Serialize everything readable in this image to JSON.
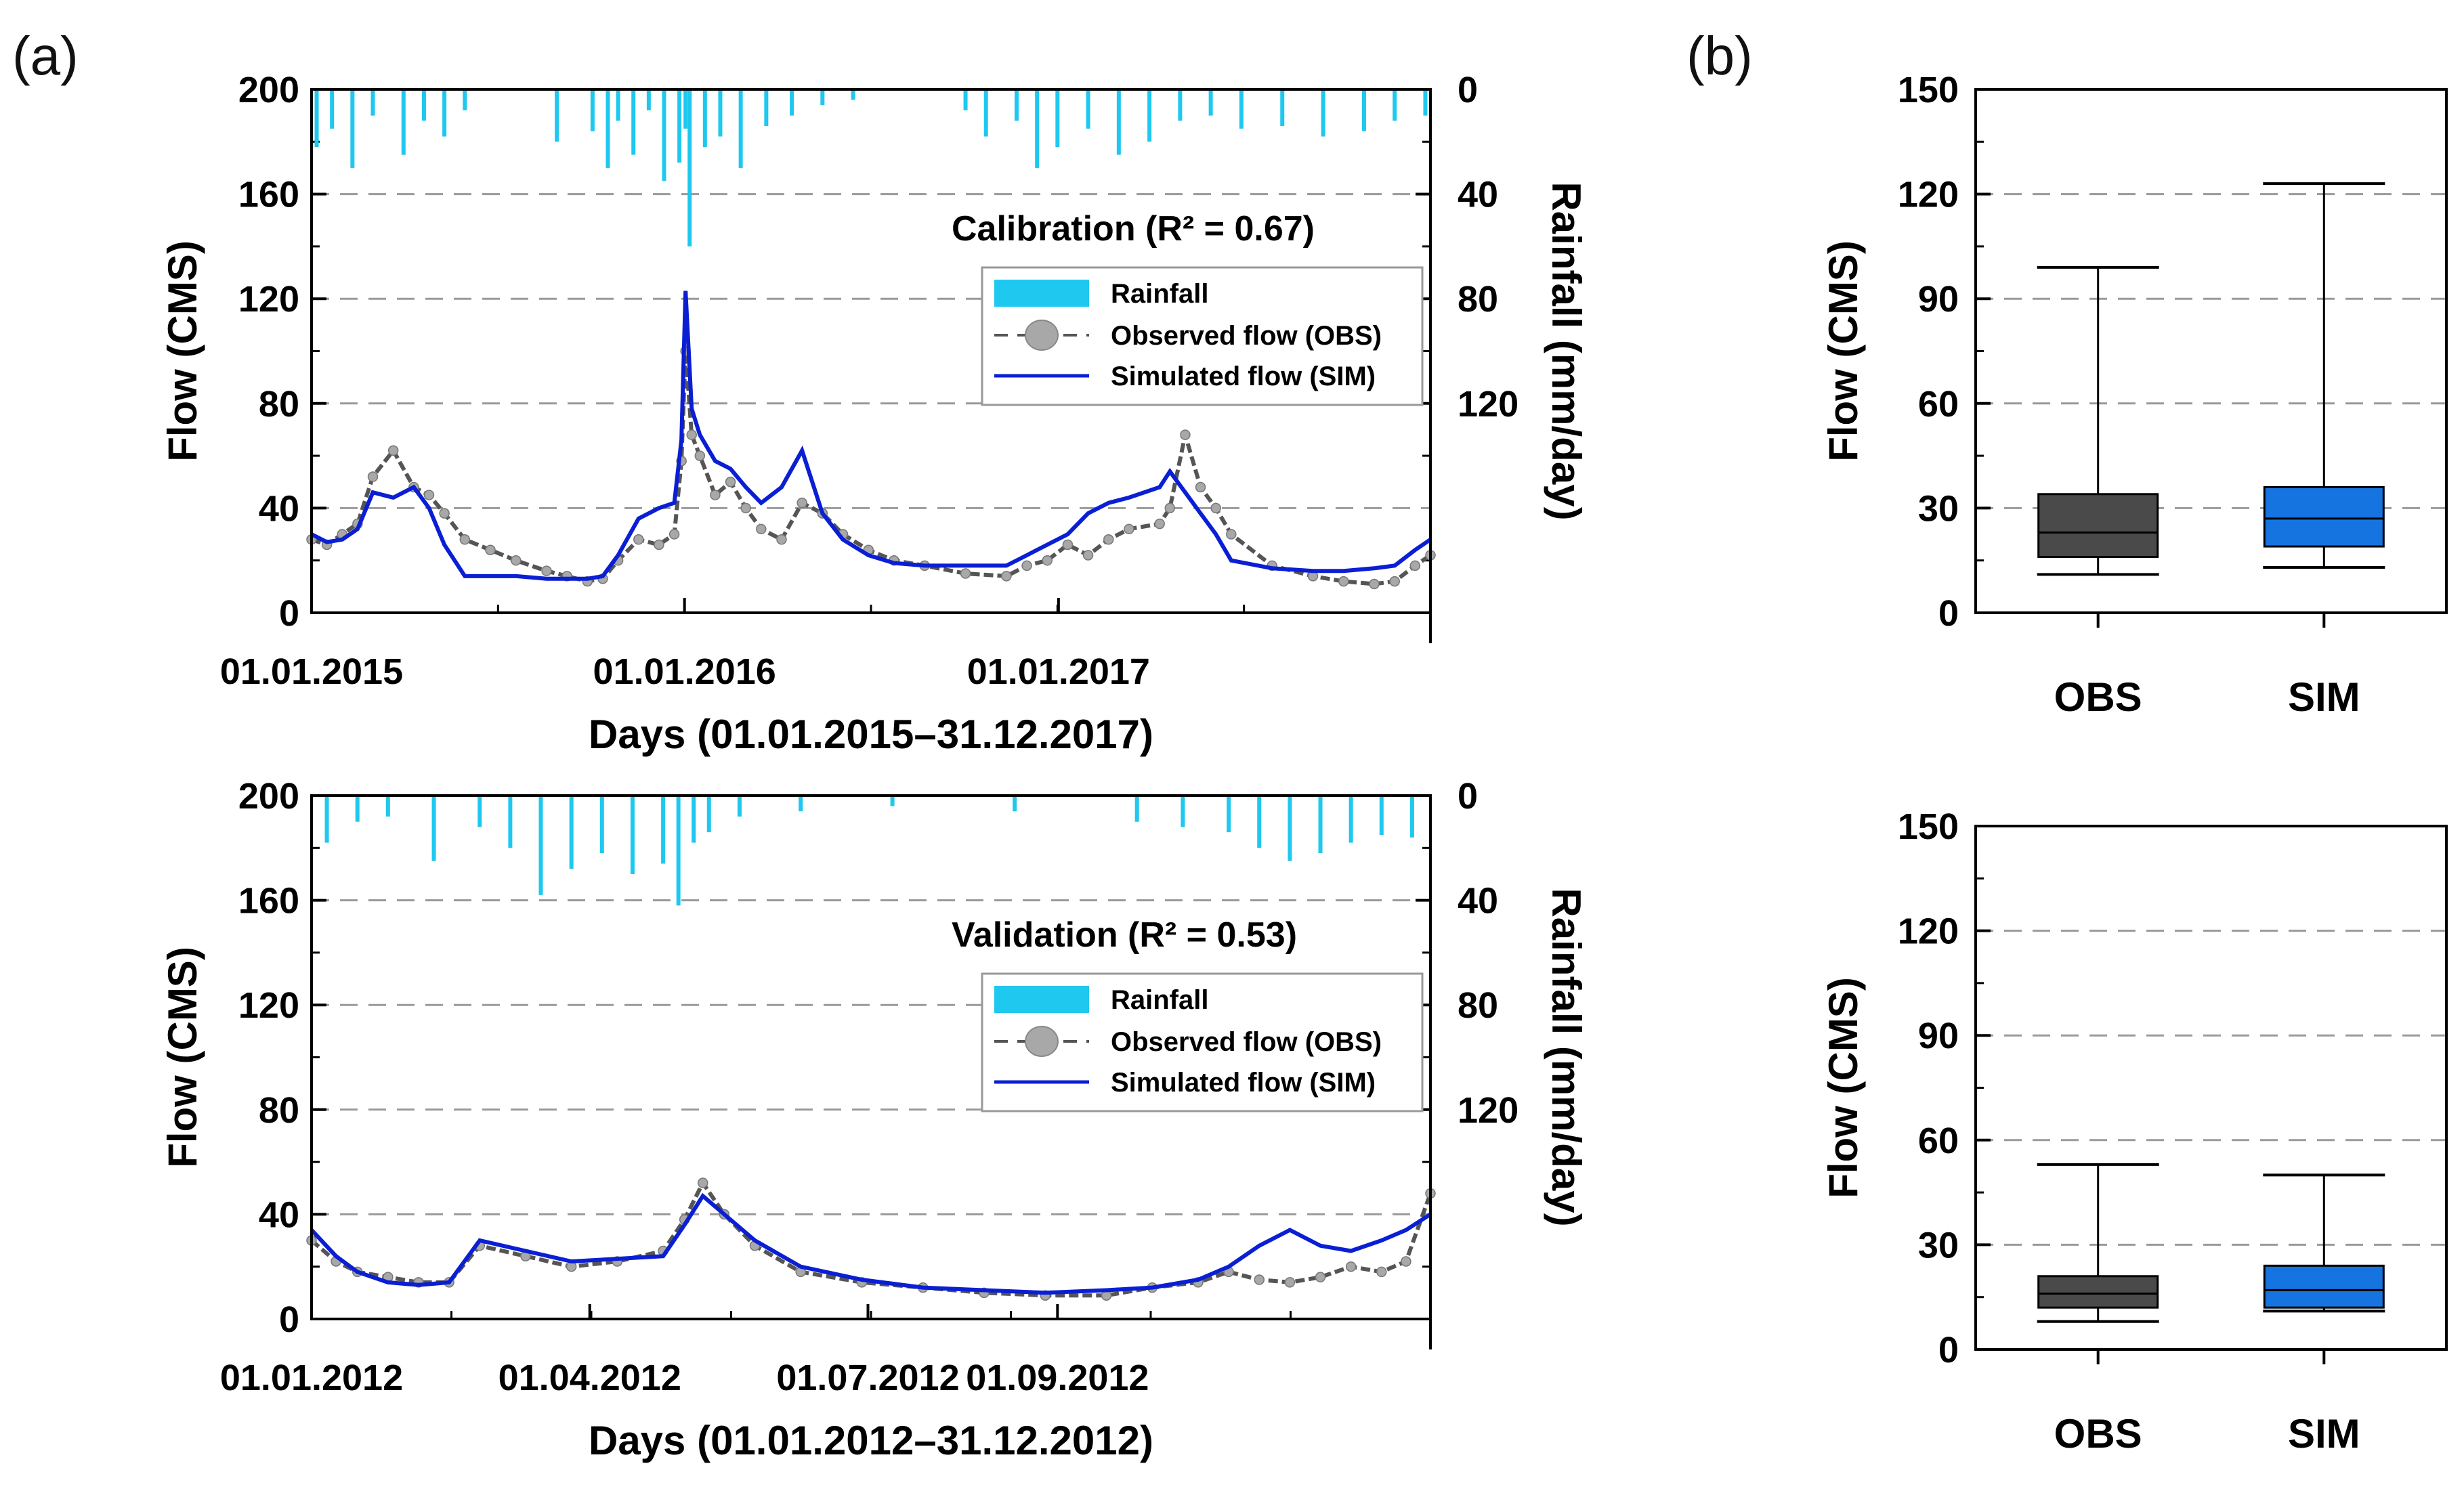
{
  "panel_labels": {
    "a": "(a)",
    "b": "(b)"
  },
  "colors": {
    "rainfall": "#1ec8ef",
    "obs_marker": "#a8a8a8",
    "obs_line": "#555555",
    "sim": "#0a1fd4",
    "box_obs": "#4a4a4a",
    "box_sim": "#1574e0",
    "grid": "#9a9a9a"
  },
  "chart_data": [
    {
      "type": "line",
      "id": "calibration",
      "annotation": "Calibration (R² = 0.67)",
      "xlabel": "Days (01.01.2015–31.12.2017)",
      "ylabel": "Flow (CMS)",
      "ylabel_right": "Rainfall (mm/day)",
      "xlim": [
        0,
        1095
      ],
      "ylim": [
        0,
        200
      ],
      "ylim_right": [
        0,
        200
      ],
      "ylim_right_inverted": true,
      "yticks": [
        "0",
        "40",
        "80",
        "120",
        "160",
        "200"
      ],
      "yticks_right": [
        "0",
        "40",
        "80",
        "120"
      ],
      "xtick_labels": [
        {
          "pos": 0,
          "label": "01.01.2015"
        },
        {
          "pos": 365,
          "label": "01.01.2016"
        },
        {
          "pos": 731,
          "label": "01.01.2017"
        }
      ],
      "legend": [
        "Rainfall",
        "Observed flow (OBS)",
        "Simulated flow (SIM)"
      ],
      "legend_position": "upper-right",
      "series": [
        {
          "name": "Observed flow (OBS)",
          "axis": "left",
          "x": [
            0,
            15,
            30,
            45,
            60,
            80,
            100,
            115,
            130,
            150,
            175,
            200,
            230,
            250,
            270,
            285,
            300,
            320,
            340,
            355,
            362,
            366,
            372,
            380,
            395,
            410,
            425,
            440,
            460,
            480,
            500,
            520,
            545,
            570,
            600,
            640,
            680,
            700,
            720,
            740,
            760,
            780,
            800,
            830,
            840,
            855,
            870,
            885,
            900,
            940,
            980,
            1010,
            1040,
            1060,
            1080,
            1095
          ],
          "y": [
            28,
            26,
            30,
            34,
            52,
            62,
            48,
            45,
            38,
            28,
            24,
            20,
            16,
            14,
            12,
            13,
            20,
            28,
            26,
            30,
            58,
            100,
            68,
            60,
            45,
            50,
            40,
            32,
            28,
            42,
            38,
            30,
            24,
            20,
            18,
            15,
            14,
            18,
            20,
            26,
            22,
            28,
            32,
            34,
            40,
            68,
            48,
            40,
            30,
            18,
            14,
            12,
            11,
            12,
            18,
            22
          ]
        },
        {
          "name": "Simulated flow (SIM)",
          "axis": "left",
          "x": [
            0,
            15,
            30,
            45,
            60,
            80,
            100,
            115,
            130,
            150,
            175,
            200,
            230,
            250,
            270,
            285,
            300,
            320,
            340,
            355,
            362,
            366,
            372,
            380,
            395,
            410,
            425,
            440,
            460,
            480,
            500,
            520,
            545,
            570,
            600,
            640,
            680,
            700,
            720,
            740,
            760,
            780,
            800,
            830,
            840,
            855,
            870,
            885,
            900,
            940,
            980,
            1010,
            1040,
            1060,
            1080,
            1095
          ],
          "y": [
            30,
            27,
            28,
            32,
            46,
            44,
            48,
            40,
            26,
            14,
            14,
            14,
            13,
            13,
            13,
            14,
            22,
            36,
            40,
            42,
            66,
            123,
            78,
            68,
            58,
            55,
            48,
            42,
            48,
            62,
            38,
            28,
            22,
            19,
            18,
            18,
            18,
            22,
            26,
            30,
            38,
            42,
            44,
            48,
            54,
            46,
            38,
            30,
            20,
            17,
            16,
            16,
            17,
            18,
            24,
            28
          ]
        },
        {
          "name": "Rainfall",
          "axis": "right",
          "type": "bar",
          "x": [
            5,
            20,
            40,
            60,
            90,
            110,
            130,
            150,
            240,
            275,
            290,
            300,
            315,
            330,
            345,
            360,
            366,
            370,
            385,
            400,
            420,
            445,
            470,
            500,
            530,
            640,
            660,
            690,
            710,
            730,
            760,
            790,
            820,
            850,
            880,
            910,
            950,
            990,
            1030,
            1060,
            1090
          ],
          "values": [
            22,
            15,
            30,
            10,
            25,
            12,
            18,
            8,
            20,
            16,
            30,
            12,
            25,
            8,
            35,
            28,
            15,
            60,
            22,
            18,
            30,
            14,
            10,
            6,
            4,
            8,
            18,
            12,
            30,
            22,
            15,
            25,
            20,
            12,
            10,
            15,
            14,
            18,
            16,
            12,
            10
          ]
        }
      ]
    },
    {
      "type": "line",
      "id": "validation",
      "annotation": "Validation (R² = 0.53)",
      "xlabel": "Days (01.01.2012–31.12.2012)",
      "ylabel": "Flow (CMS)",
      "ylabel_right": "Rainfall (mm/day)",
      "xlim": [
        0,
        366
      ],
      "ylim": [
        0,
        200
      ],
      "ylim_right": [
        0,
        200
      ],
      "ylim_right_inverted": true,
      "yticks": [
        "0",
        "40",
        "80",
        "120",
        "160",
        "200"
      ],
      "yticks_right": [
        "0",
        "40",
        "80",
        "120"
      ],
      "xtick_labels": [
        {
          "pos": 0,
          "label": "01.01.2012"
        },
        {
          "pos": 91,
          "label": "01.04.2012"
        },
        {
          "pos": 182,
          "label": "01.07.2012"
        },
        {
          "pos": 244,
          "label": "01.09.2012"
        }
      ],
      "legend": [
        "Rainfall",
        "Observed flow (OBS)",
        "Simulated flow (SIM)"
      ],
      "legend_position": "upper-right",
      "series": [
        {
          "name": "Observed flow (OBS)",
          "axis": "left",
          "x": [
            0,
            8,
            15,
            25,
            35,
            45,
            55,
            70,
            85,
            100,
            115,
            122,
            128,
            135,
            145,
            160,
            180,
            200,
            220,
            240,
            260,
            275,
            290,
            300,
            310,
            320,
            330,
            340,
            350,
            358,
            366
          ],
          "y": [
            30,
            22,
            18,
            16,
            14,
            14,
            28,
            24,
            20,
            22,
            26,
            38,
            52,
            40,
            28,
            18,
            14,
            12,
            10,
            9,
            9,
            12,
            14,
            18,
            15,
            14,
            16,
            20,
            18,
            22,
            48
          ]
        },
        {
          "name": "Simulated flow (SIM)",
          "axis": "left",
          "x": [
            0,
            8,
            15,
            25,
            35,
            45,
            55,
            70,
            85,
            100,
            115,
            122,
            128,
            135,
            145,
            160,
            180,
            200,
            220,
            240,
            260,
            275,
            290,
            300,
            310,
            320,
            330,
            340,
            350,
            358,
            366
          ],
          "y": [
            34,
            24,
            18,
            14,
            13,
            14,
            30,
            26,
            22,
            23,
            24,
            36,
            47,
            40,
            30,
            20,
            15,
            12,
            11,
            10,
            11,
            12,
            15,
            20,
            28,
            34,
            28,
            26,
            30,
            34,
            40
          ]
        },
        {
          "name": "Rainfall",
          "axis": "right",
          "type": "bar",
          "x": [
            5,
            15,
            25,
            40,
            55,
            65,
            75,
            85,
            95,
            105,
            115,
            120,
            125,
            130,
            140,
            160,
            190,
            230,
            270,
            285,
            300,
            310,
            320,
            330,
            340,
            350,
            360
          ],
          "values": [
            18,
            10,
            8,
            25,
            12,
            20,
            38,
            28,
            22,
            30,
            26,
            42,
            18,
            14,
            8,
            6,
            4,
            6,
            10,
            12,
            14,
            20,
            25,
            22,
            18,
            15,
            16
          ]
        }
      ]
    },
    {
      "type": "box",
      "id": "box-calibration",
      "ylabel": "Flow (CMS)",
      "ylim": [
        0,
        150
      ],
      "yticks": [
        "0",
        "30",
        "60",
        "90",
        "120",
        "150"
      ],
      "categories": [
        "OBS",
        "SIM"
      ],
      "boxes": [
        {
          "name": "OBS",
          "min": 11,
          "q1": 16,
          "median": 23,
          "q3": 34,
          "max": 99
        },
        {
          "name": "SIM",
          "min": 13,
          "q1": 19,
          "median": 27,
          "q3": 36,
          "max": 123
        }
      ]
    },
    {
      "type": "box",
      "id": "box-validation",
      "ylabel": "Flow (CMS)",
      "ylim": [
        0,
        150
      ],
      "yticks": [
        "0",
        "30",
        "60",
        "90",
        "120",
        "150"
      ],
      "categories": [
        "OBS",
        "SIM"
      ],
      "boxes": [
        {
          "name": "OBS",
          "min": 8,
          "q1": 12,
          "median": 16,
          "q3": 21,
          "max": 53
        },
        {
          "name": "SIM",
          "min": 11,
          "q1": 12,
          "median": 17,
          "q3": 24,
          "max": 50
        }
      ]
    }
  ]
}
